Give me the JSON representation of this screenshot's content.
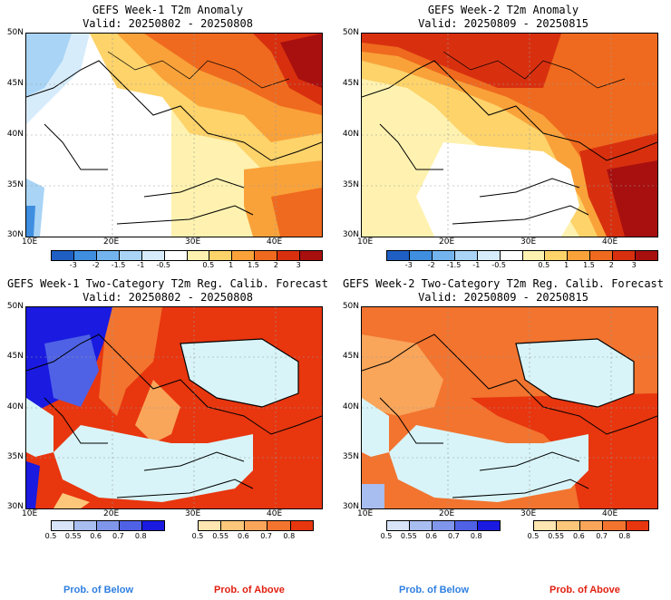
{
  "panels": [
    {
      "title": "GEFS Week-1 T2m Anomaly",
      "valid": "Valid: 20250802 - 20250808",
      "lat_labels": [
        "50N",
        "45N",
        "40N",
        "35N",
        "30N"
      ],
      "lon_labels": [
        "10E",
        "20E",
        "30E",
        "40E"
      ],
      "colorbar_ticks": [
        "-3",
        "-2",
        "-1.5",
        "-1",
        "-0.5",
        "0.5",
        "1",
        "1.5",
        "2",
        "3"
      ]
    },
    {
      "title": "GEFS Week-2 T2m Anomaly",
      "valid": "Valid: 20250809 - 20250815",
      "lat_labels": [
        "50N",
        "45N",
        "40N",
        "35N",
        "30N"
      ],
      "lon_labels": [
        "10E",
        "20E",
        "30E",
        "40E"
      ],
      "colorbar_ticks": [
        "-3",
        "-2",
        "-1.5",
        "-1",
        "-0.5",
        "0.5",
        "1",
        "1.5",
        "2",
        "3"
      ]
    },
    {
      "title": "GEFS Week-1 Two-Category T2m Reg. Calib. Forecast",
      "valid": "Valid: 20250802 - 20250808",
      "lat_labels": [
        "50N",
        "45N",
        "40N",
        "35N",
        "30N"
      ],
      "lon_labels": [
        "10E",
        "20E",
        "30E",
        "40E"
      ],
      "below_ticks": [
        "0.5",
        "0.55",
        "0.6",
        "0.7",
        "0.8"
      ],
      "above_ticks": [
        "0.5",
        "0.55",
        "0.6",
        "0.7",
        "0.8"
      ]
    },
    {
      "title": "GEFS Week-2 Two-Category T2m Reg. Calib. Forecast",
      "valid": "Valid: 20250809 - 20250815",
      "lat_labels": [
        "50N",
        "45N",
        "40N",
        "35N",
        "30N"
      ],
      "lon_labels": [
        "10E",
        "20E",
        "30E",
        "40E"
      ],
      "below_ticks": [
        "0.5",
        "0.55",
        "0.6",
        "0.7",
        "0.8"
      ],
      "above_ticks": [
        "0.5",
        "0.55",
        "0.6",
        "0.7",
        "0.8"
      ]
    }
  ],
  "legend": {
    "prob_below": "Prob. of Below",
    "prob_above": "Prob. of Above"
  },
  "colors": {
    "anomaly_scale": [
      "#1f5fc4",
      "#3f8ee0",
      "#74b4ee",
      "#a9d4f5",
      "#d7ecfb",
      "#ffffff",
      "#fff2b0",
      "#fdd36a",
      "#f9a23a",
      "#ef6a1e",
      "#d8300f",
      "#a80f0f"
    ],
    "below_scale": [
      "#d8e4f8",
      "#a8bdf0",
      "#7f96ea",
      "#4f62e6",
      "#1a1ae0"
    ],
    "above_scale": [
      "#fde6b0",
      "#fcc77a",
      "#f9a55a",
      "#f2742f",
      "#e8360f"
    ],
    "sea_prob": "#d8f4f8"
  }
}
